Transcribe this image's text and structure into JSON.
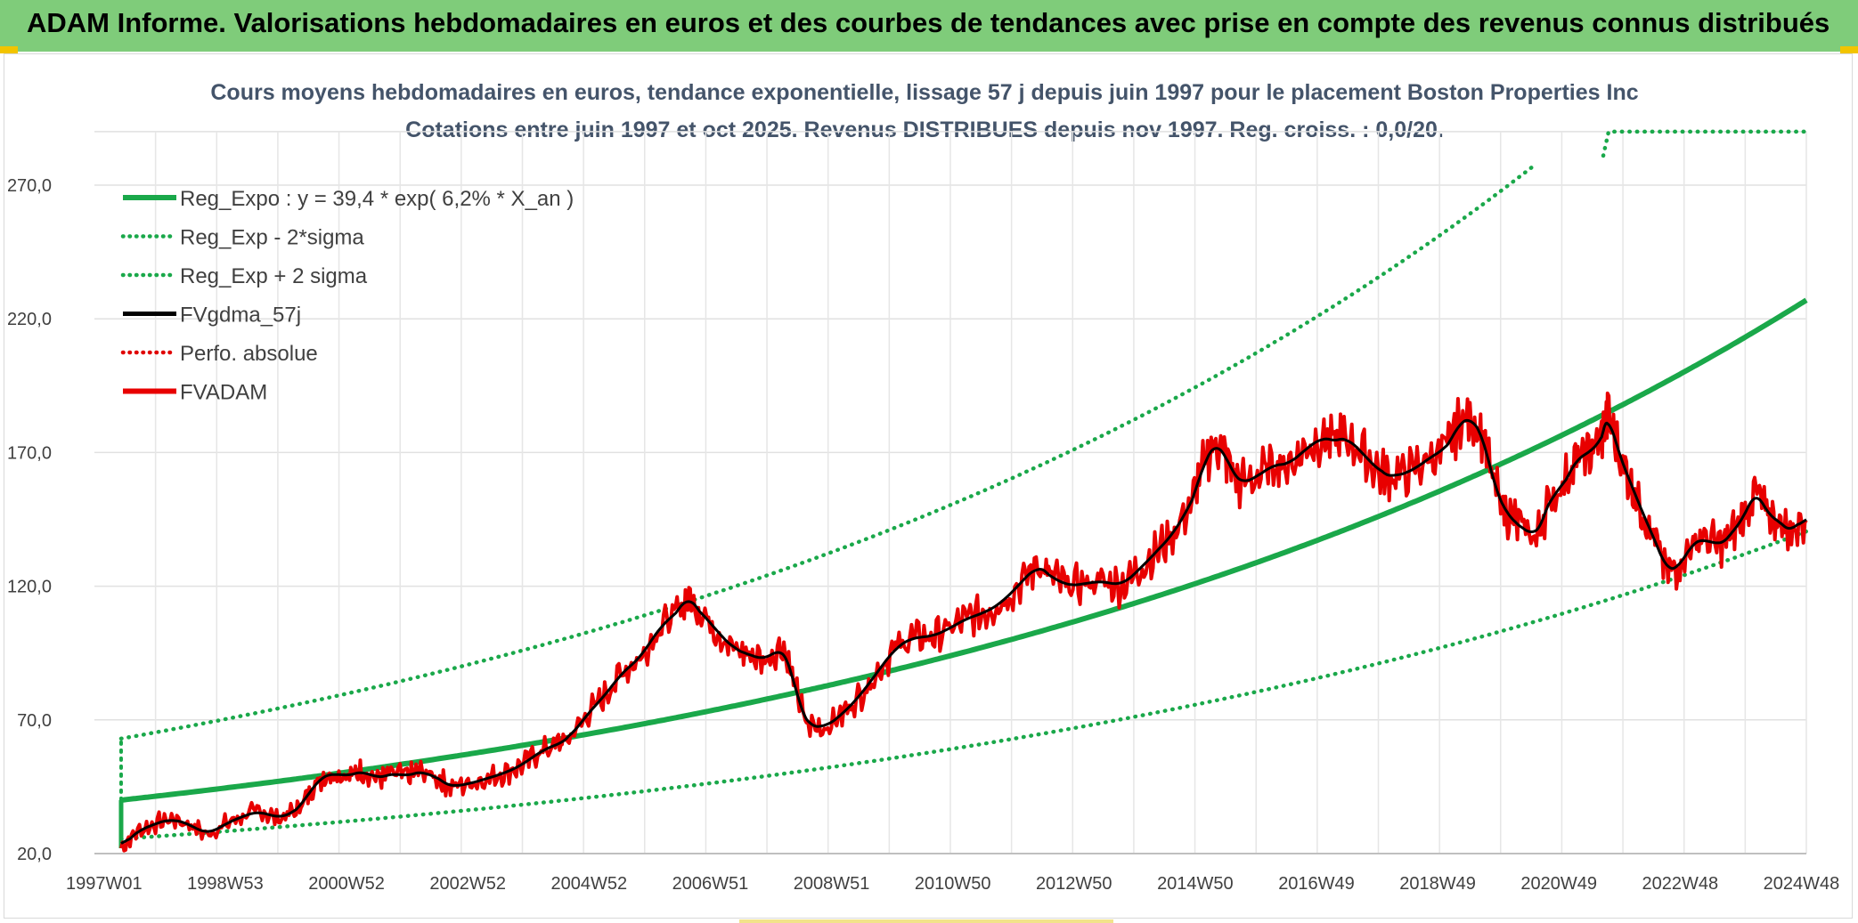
{
  "header": {
    "title": "ADAM Informe. Valorisations hebdomadaires en euros et des courbes de tendances avec prise en compte des revenus connus distribués"
  },
  "chart_data": {
    "type": "line",
    "title_line1": "Cours moyens hebdomadaires en euros, tendance exponentielle, lissage 57 j depuis juin 1997 pour le placement Boston Properties Inc",
    "title_line2": "Cotations entre juin 1997 et oct 2025. Revenus DISTRIBUES depuis nov 1997. Reg. croiss. : 0,0/20.",
    "xlabel": "",
    "ylabel": "",
    "x_ticks": [
      "1997W01",
      "1998W53",
      "2000W52",
      "2002W52",
      "2004W52",
      "2006W51",
      "2008W51",
      "2010W50",
      "2012W50",
      "2014W50",
      "2016W49",
      "2018W49",
      "2020W49",
      "2022W48",
      "2024W48"
    ],
    "y_ticks": [
      "20,0",
      "70,0",
      "120,0",
      "170,0",
      "220,0",
      "270,0"
    ],
    "y_tick_values": [
      20,
      70,
      120,
      170,
      220,
      270
    ],
    "xlim": [
      1997.0,
      2025.85
    ],
    "ylim": [
      20,
      290
    ],
    "legend_position": "top-left",
    "series": [
      {
        "name": "Reg_Expo : y = 39,4 * exp( 6,2% *  X_an )",
        "key": "reg",
        "color": "#1aa84a",
        "style": "solid"
      },
      {
        "name": "Reg_Exp - 2*sigma",
        "key": "lower",
        "color": "#1aa84a",
        "style": "dotted"
      },
      {
        "name": "Reg_Exp + 2 sigma",
        "key": "upper",
        "color": "#1aa84a",
        "style": "dotted"
      },
      {
        "name": "FVgdma_57j",
        "key": "fvgdma",
        "color": "#000000",
        "style": "solid"
      },
      {
        "name": "Perfo. absolue",
        "key": "perfo",
        "color": "#e00000",
        "style": "dotted"
      },
      {
        "name": "FVADAM",
        "key": "fvadam",
        "color": "#e80000",
        "style": "solid"
      }
    ],
    "reg_params": {
      "a": 39.4,
      "rate": 0.062,
      "x0": 1997.45,
      "lower_factor": 0.615,
      "upper_factor": 1.6,
      "upper_cap": 298
    },
    "fvadam_points": [
      [
        1997.45,
        22
      ],
      [
        1997.7,
        28
      ],
      [
        1998.0,
        31
      ],
      [
        1998.3,
        33
      ],
      [
        1998.6,
        31
      ],
      [
        1998.9,
        27
      ],
      [
        1999.2,
        31
      ],
      [
        1999.5,
        34
      ],
      [
        1999.8,
        36
      ],
      [
        2000.1,
        33
      ],
      [
        2000.4,
        36
      ],
      [
        2000.6,
        42
      ],
      [
        2000.8,
        48
      ],
      [
        2001.0,
        50
      ],
      [
        2001.3,
        49
      ],
      [
        2001.5,
        51
      ],
      [
        2001.8,
        48
      ],
      [
        2002.0,
        50
      ],
      [
        2002.3,
        49
      ],
      [
        2002.5,
        51
      ],
      [
        2002.8,
        48
      ],
      [
        2003.0,
        45
      ],
      [
        2003.3,
        46
      ],
      [
        2003.6,
        48
      ],
      [
        2003.9,
        50
      ],
      [
        2004.2,
        53
      ],
      [
        2004.5,
        58
      ],
      [
        2004.8,
        61
      ],
      [
        2005.0,
        63
      ],
      [
        2005.3,
        72
      ],
      [
        2005.6,
        79
      ],
      [
        2005.9,
        88
      ],
      [
        2006.2,
        93
      ],
      [
        2006.5,
        104
      ],
      [
        2006.8,
        110
      ],
      [
        2007.0,
        116
      ],
      [
        2007.2,
        111
      ],
      [
        2007.5,
        103
      ],
      [
        2007.8,
        96
      ],
      [
        2008.0,
        95
      ],
      [
        2008.3,
        92
      ],
      [
        2008.6,
        98
      ],
      [
        2008.8,
        83
      ],
      [
        2009.0,
        68
      ],
      [
        2009.3,
        67
      ],
      [
        2009.6,
        72
      ],
      [
        2009.9,
        79
      ],
      [
        2010.2,
        88
      ],
      [
        2010.5,
        97
      ],
      [
        2010.8,
        101
      ],
      [
        2011.1,
        101
      ],
      [
        2011.4,
        104
      ],
      [
        2011.7,
        108
      ],
      [
        2012.0,
        110
      ],
      [
        2012.3,
        114
      ],
      [
        2012.6,
        121
      ],
      [
        2012.9,
        128
      ],
      [
        2013.1,
        124
      ],
      [
        2013.4,
        120
      ],
      [
        2013.7,
        121
      ],
      [
        2014.0,
        122
      ],
      [
        2014.3,
        120
      ],
      [
        2014.6,
        126
      ],
      [
        2014.9,
        133
      ],
      [
        2015.2,
        140
      ],
      [
        2015.5,
        152
      ],
      [
        2015.7,
        166
      ],
      [
        2015.9,
        174
      ],
      [
        2016.1,
        167
      ],
      [
        2016.3,
        158
      ],
      [
        2016.6,
        161
      ],
      [
        2016.9,
        166
      ],
      [
        2017.1,
        165
      ],
      [
        2017.4,
        171
      ],
      [
        2017.7,
        176
      ],
      [
        2017.9,
        174
      ],
      [
        2018.1,
        176
      ],
      [
        2018.4,
        169
      ],
      [
        2018.7,
        162
      ],
      [
        2018.9,
        161
      ],
      [
        2019.2,
        163
      ],
      [
        2019.5,
        168
      ],
      [
        2019.8,
        172
      ],
      [
        2020.0,
        181
      ],
      [
        2020.2,
        183
      ],
      [
        2020.4,
        176
      ],
      [
        2020.6,
        157
      ],
      [
        2020.8,
        147
      ],
      [
        2021.0,
        143
      ],
      [
        2021.3,
        138
      ],
      [
        2021.5,
        151
      ],
      [
        2021.8,
        160
      ],
      [
        2022.0,
        168
      ],
      [
        2022.2,
        170
      ],
      [
        2022.4,
        175
      ],
      [
        2022.5,
        185
      ],
      [
        2022.7,
        169
      ],
      [
        2022.9,
        158
      ],
      [
        2023.1,
        147
      ],
      [
        2023.3,
        137
      ],
      [
        2023.5,
        126
      ],
      [
        2023.7,
        127
      ],
      [
        2023.9,
        135
      ],
      [
        2024.1,
        138
      ],
      [
        2024.4,
        135
      ],
      [
        2024.6,
        140
      ],
      [
        2024.8,
        146
      ],
      [
        2025.0,
        156
      ],
      [
        2025.2,
        147
      ],
      [
        2025.4,
        144
      ],
      [
        2025.6,
        140
      ],
      [
        2025.85,
        147
      ]
    ]
  }
}
